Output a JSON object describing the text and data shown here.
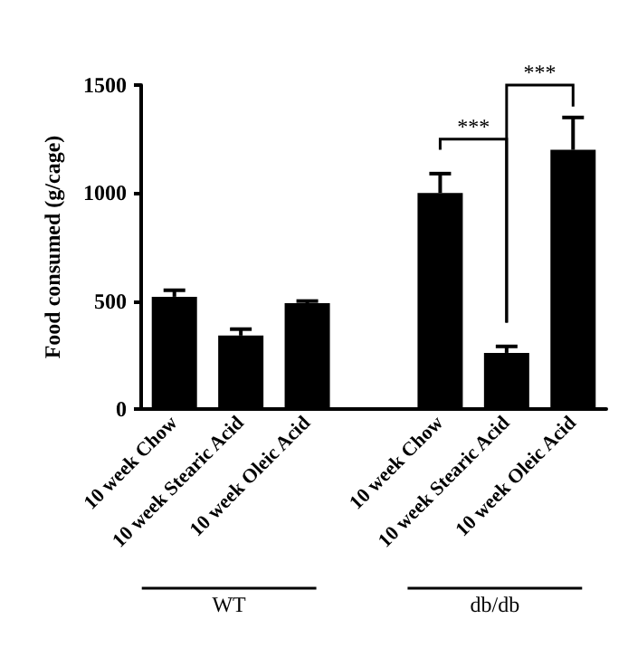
{
  "chart_data": {
    "type": "bar",
    "ylabel": "Food consumed (g/cage)",
    "categories": [
      "10 week Chow",
      "10 week Stearic Acid",
      "10 week Oleic Acid",
      null,
      "10 week Chow",
      "10 week Stearic Acid",
      "10 week Oleic Acid"
    ],
    "values": [
      520,
      340,
      490,
      null,
      1000,
      260,
      1200
    ],
    "errors": [
      30,
      30,
      10,
      null,
      90,
      30,
      150
    ],
    "color": "#000000",
    "ylim": [
      0,
      1500
    ],
    "yticks": [
      0,
      500,
      1000,
      1500
    ],
    "grid": false,
    "annotations": [
      "***",
      "***",
      "WT",
      "db/db"
    ]
  }
}
